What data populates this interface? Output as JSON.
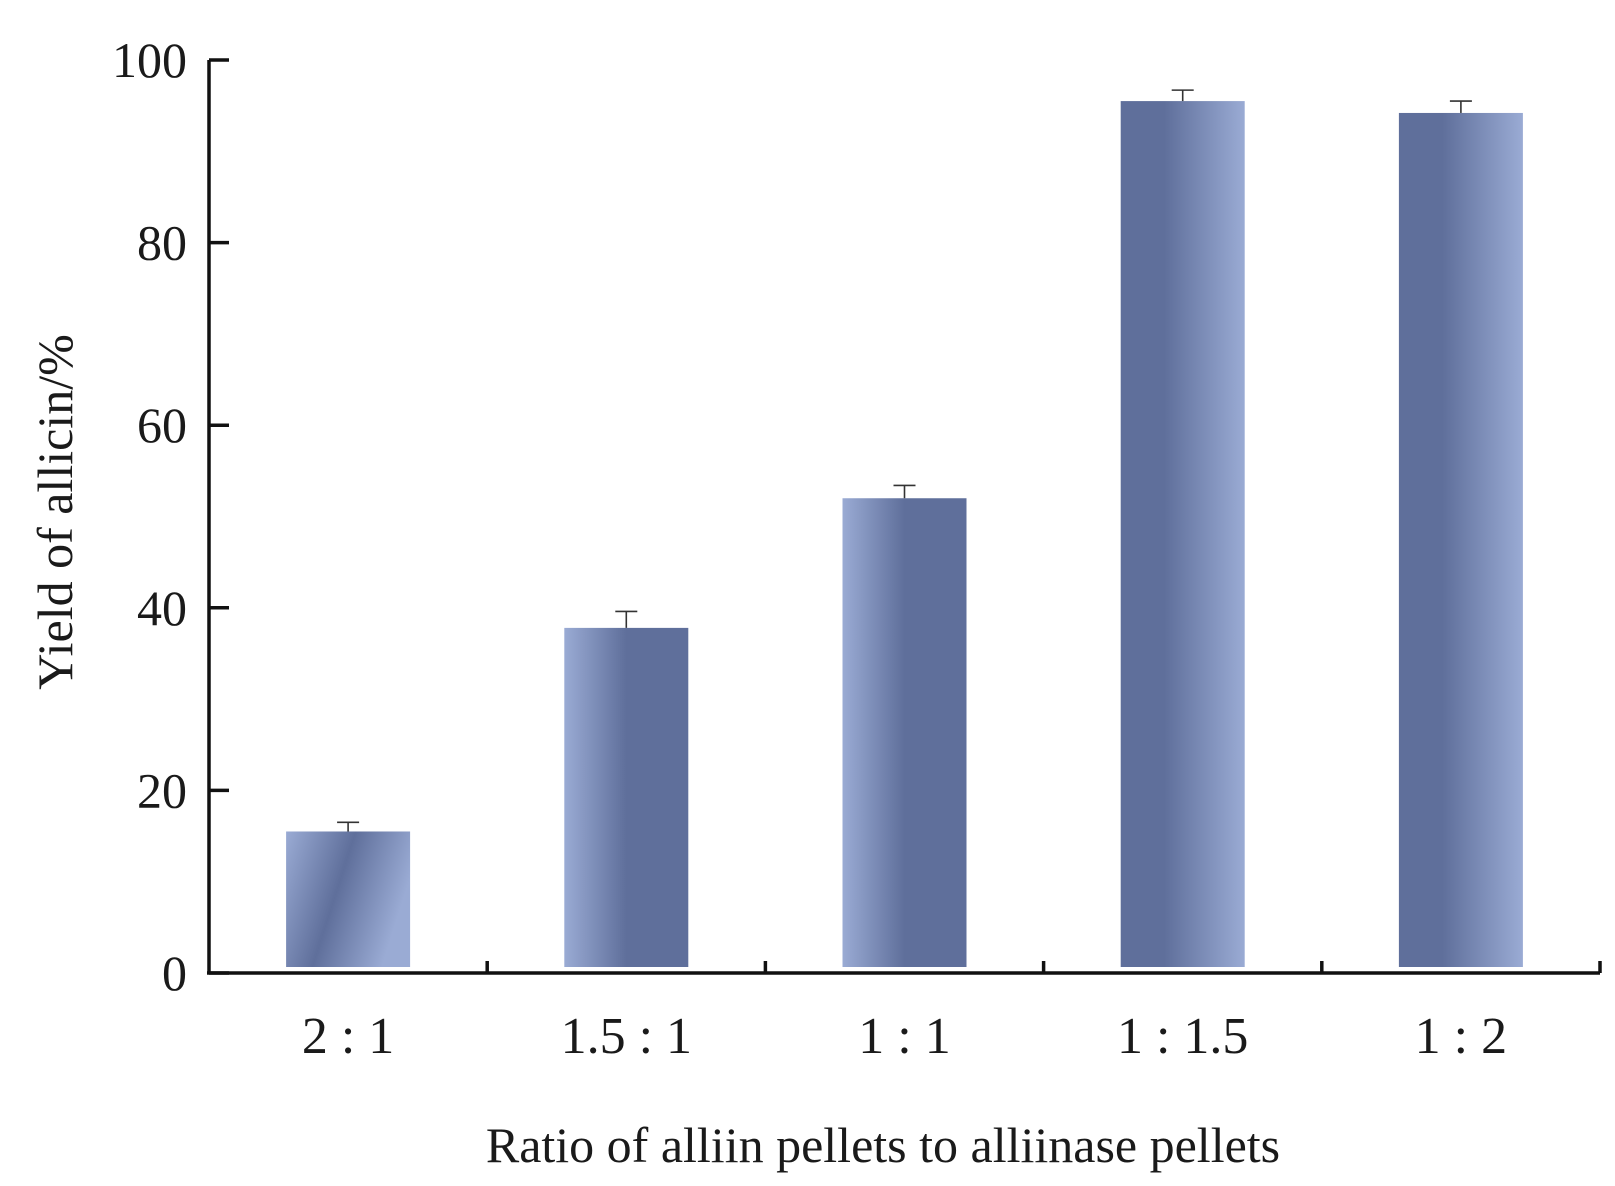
{
  "chart_data": {
    "type": "bar",
    "categories": [
      "2 : 1",
      "1.5 : 1",
      "1 : 1",
      "1 : 1.5",
      "1 : 2"
    ],
    "values": [
      15.5,
      37.8,
      52.0,
      95.5,
      94.2
    ],
    "errors": [
      1.0,
      1.8,
      1.4,
      1.2,
      1.3
    ],
    "xlabel": "Ratio of alliin pellets to alliinase pellets",
    "ylabel": "Yield of allicin/%",
    "ylim": [
      0,
      100
    ],
    "yticks": [
      0,
      20,
      40,
      60,
      80,
      100
    ],
    "grid": false,
    "legend": "none",
    "colors": {
      "bar_light": "#9aabd4",
      "bar_dark": "#5f6f9b",
      "axis": "#111111"
    }
  }
}
